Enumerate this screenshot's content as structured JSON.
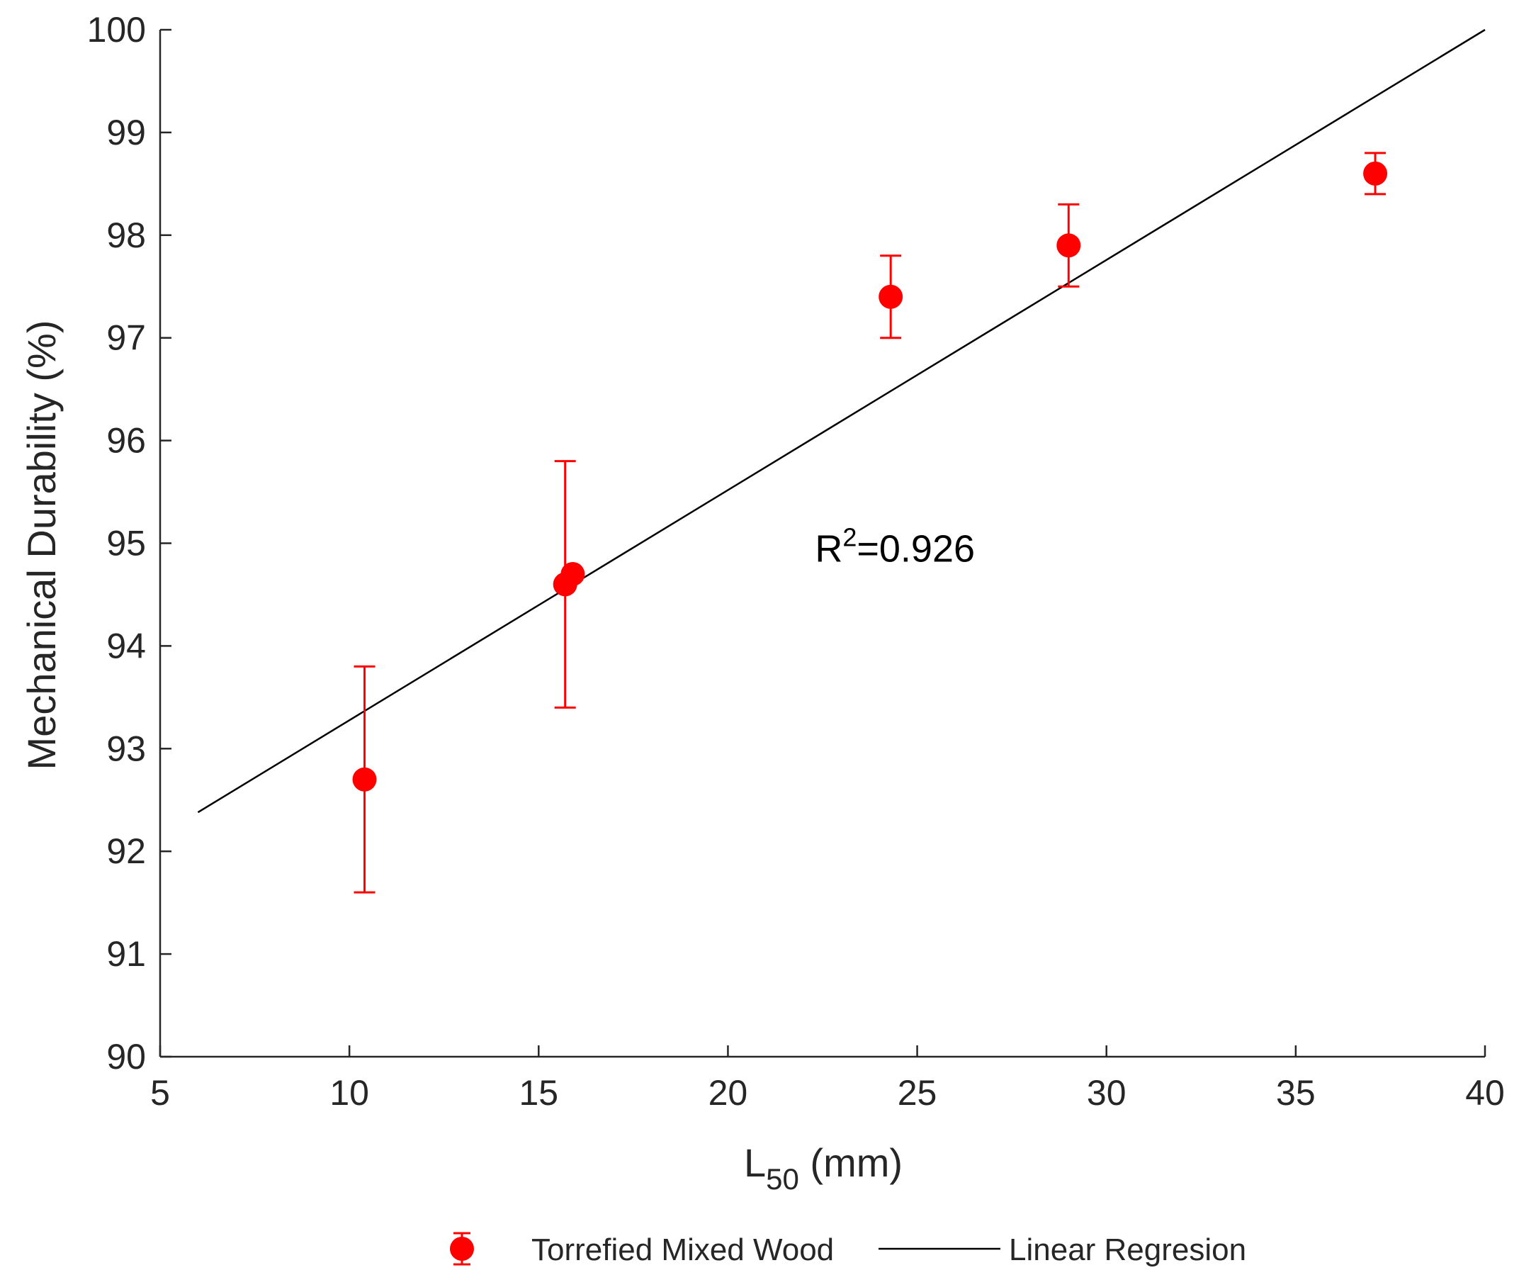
{
  "chart_data": {
    "type": "scatter",
    "title": "",
    "xlabel": {
      "main": "L",
      "sub": "50",
      "rest": " (mm)"
    },
    "ylabel": "Mechanical Durability (%)",
    "xlim": [
      5,
      40
    ],
    "ylim": [
      90,
      100
    ],
    "x_ticks": [
      5,
      10,
      15,
      20,
      25,
      30,
      35,
      40
    ],
    "y_ticks": [
      90,
      91,
      92,
      93,
      94,
      95,
      96,
      97,
      98,
      99,
      100
    ],
    "grid": false,
    "series": [
      {
        "name": "Torrefied Mixed Wood",
        "marker": "circle",
        "color": "#ff0000",
        "points": [
          {
            "x": 10.4,
            "y": 92.7,
            "err_low": 91.6,
            "err_high": 93.8
          },
          {
            "x": 15.7,
            "y": 94.6,
            "err_low": 93.4,
            "err_high": 95.8
          },
          {
            "x": 15.9,
            "y": 94.7,
            "err_low": 94.7,
            "err_high": 94.7
          },
          {
            "x": 24.3,
            "y": 97.4,
            "err_low": 97.0,
            "err_high": 97.8
          },
          {
            "x": 29.0,
            "y": 97.9,
            "err_low": 97.5,
            "err_high": 98.3
          },
          {
            "x": 37.1,
            "y": 98.6,
            "err_low": 98.4,
            "err_high": 98.8
          }
        ]
      },
      {
        "name": "Linear Regresion",
        "type": "line",
        "color": "#000000",
        "x": [
          6,
          40
        ],
        "y": [
          92.38,
          100.0
        ]
      }
    ],
    "annotation": {
      "base": "R",
      "sup": "2",
      "rest": "=0.926",
      "x": 22.3,
      "y": 94.82
    },
    "legend": {
      "placement": "bottom-center",
      "entries": [
        "Torrefied Mixed Wood",
        "Linear Regresion"
      ]
    }
  }
}
